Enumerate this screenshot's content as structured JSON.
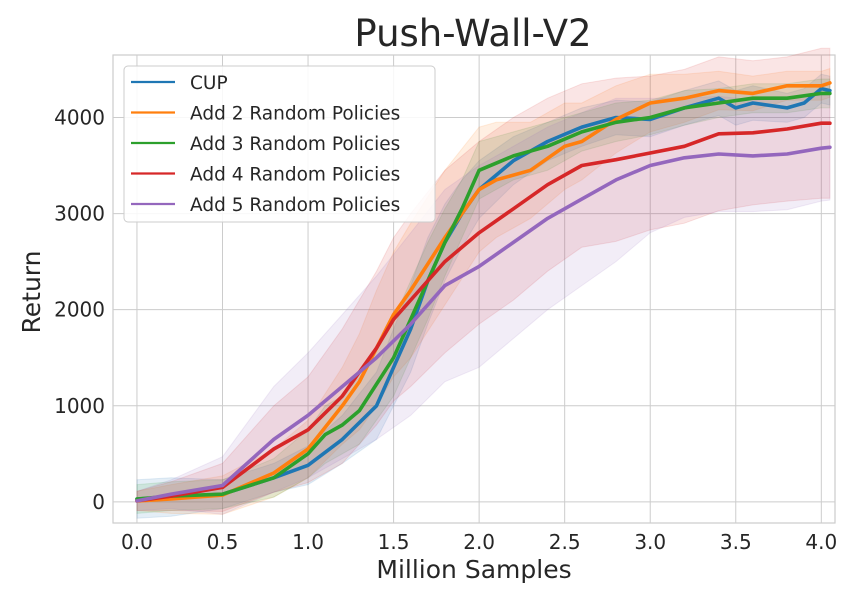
{
  "chart_data": {
    "type": "line",
    "title": "Push-Wall-V2",
    "xlabel": "Million Samples",
    "ylabel": "Return",
    "xlim": [
      -0.14,
      4.08
    ],
    "ylim": [
      -220,
      4650
    ],
    "xticks": [
      0.0,
      0.5,
      1.0,
      1.5,
      2.0,
      2.5,
      3.0,
      3.5,
      4.0
    ],
    "xtick_labels": [
      "0.0",
      "0.5",
      "1.0",
      "1.5",
      "2.0",
      "2.5",
      "3.0",
      "3.5",
      "4.0"
    ],
    "yticks": [
      0,
      1000,
      2000,
      3000,
      4000
    ],
    "ytick_labels": [
      "0",
      "1000",
      "2000",
      "3000",
      "4000"
    ],
    "grid": true,
    "legend_position": "top-left",
    "series": [
      {
        "name": "CUP",
        "color": "#1f77b4",
        "x": [
          0.0,
          0.2,
          0.5,
          0.8,
          1.0,
          1.2,
          1.4,
          1.5,
          1.6,
          1.7,
          1.8,
          1.9,
          2.0,
          2.2,
          2.4,
          2.6,
          2.8,
          3.0,
          3.2,
          3.4,
          3.5,
          3.6,
          3.8,
          3.9,
          4.0,
          4.05
        ],
        "y": [
          30,
          50,
          80,
          250,
          380,
          650,
          1000,
          1400,
          1800,
          2300,
          2700,
          3000,
          3250,
          3550,
          3750,
          3900,
          4000,
          3980,
          4100,
          4200,
          4100,
          4150,
          4100,
          4150,
          4300,
          4280
        ],
        "band": [
          200,
          200,
          150,
          150,
          200,
          250,
          350,
          400,
          450,
          450,
          400,
          350,
          300,
          250,
          200,
          200,
          180,
          180,
          180,
          180,
          180,
          180,
          150,
          150,
          150,
          150
        ]
      },
      {
        "name": "Add 2 Random Policies",
        "color": "#ff7f0e",
        "x": [
          0.0,
          0.2,
          0.5,
          0.8,
          1.0,
          1.2,
          1.3,
          1.4,
          1.5,
          1.6,
          1.8,
          2.0,
          2.1,
          2.3,
          2.5,
          2.6,
          2.8,
          3.0,
          3.2,
          3.4,
          3.6,
          3.8,
          4.0,
          4.05
        ],
        "y": [
          10,
          30,
          70,
          300,
          550,
          1000,
          1250,
          1600,
          1950,
          2200,
          2750,
          3250,
          3350,
          3450,
          3700,
          3750,
          3980,
          4150,
          4200,
          4280,
          4250,
          4330,
          4330,
          4360
        ],
        "band": [
          100,
          150,
          200,
          250,
          300,
          400,
          500,
          600,
          650,
          700,
          700,
          650,
          600,
          500,
          450,
          400,
          350,
          300,
          250,
          200,
          180,
          150,
          150,
          150
        ]
      },
      {
        "name": "Add 3 Random Policies",
        "color": "#2ca02c",
        "x": [
          0.0,
          0.2,
          0.5,
          0.8,
          1.0,
          1.1,
          1.2,
          1.3,
          1.5,
          1.7,
          1.8,
          1.9,
          2.0,
          2.2,
          2.4,
          2.6,
          2.8,
          3.0,
          3.2,
          3.4,
          3.6,
          3.8,
          4.0,
          4.05
        ],
        "y": [
          30,
          60,
          80,
          250,
          500,
          700,
          800,
          950,
          1500,
          2300,
          2700,
          3050,
          3450,
          3600,
          3700,
          3850,
          3950,
          4000,
          4100,
          4150,
          4200,
          4200,
          4250,
          4250
        ],
        "band": [
          150,
          150,
          150,
          200,
          250,
          300,
          300,
          350,
          400,
          400,
          350,
          300,
          300,
          250,
          250,
          200,
          200,
          180,
          180,
          150,
          150,
          150,
          150,
          150
        ]
      },
      {
        "name": "Add 4 Random Policies",
        "color": "#d62728",
        "x": [
          0.0,
          0.2,
          0.5,
          0.8,
          1.0,
          1.2,
          1.4,
          1.5,
          1.6,
          1.8,
          2.0,
          2.2,
          2.4,
          2.6,
          2.8,
          3.0,
          3.2,
          3.4,
          3.6,
          3.8,
          4.0,
          4.05
        ],
        "y": [
          10,
          60,
          150,
          550,
          750,
          1100,
          1600,
          1900,
          2100,
          2500,
          2800,
          3050,
          3300,
          3500,
          3560,
          3630,
          3700,
          3830,
          3840,
          3880,
          3940,
          3940
        ],
        "band": [
          100,
          150,
          250,
          450,
          550,
          700,
          800,
          850,
          900,
          950,
          950,
          950,
          900,
          850,
          850,
          800,
          800,
          800,
          750,
          750,
          780,
          780
        ]
      },
      {
        "name": "Add 5 Random Policies",
        "color": "#9467bd",
        "x": [
          0.0,
          0.2,
          0.5,
          0.8,
          1.0,
          1.2,
          1.4,
          1.6,
          1.8,
          2.0,
          2.2,
          2.4,
          2.6,
          2.8,
          3.0,
          3.2,
          3.4,
          3.6,
          3.8,
          4.0,
          4.05
        ],
        "y": [
          10,
          80,
          170,
          650,
          900,
          1200,
          1500,
          1850,
          2250,
          2450,
          2700,
          2950,
          3150,
          3350,
          3500,
          3580,
          3620,
          3600,
          3620,
          3680,
          3690
        ],
        "band": [
          100,
          150,
          300,
          550,
          650,
          750,
          850,
          950,
          1000,
          1050,
          1000,
          950,
          900,
          850,
          700,
          620,
          600,
          580,
          580,
          550,
          550
        ]
      }
    ]
  }
}
